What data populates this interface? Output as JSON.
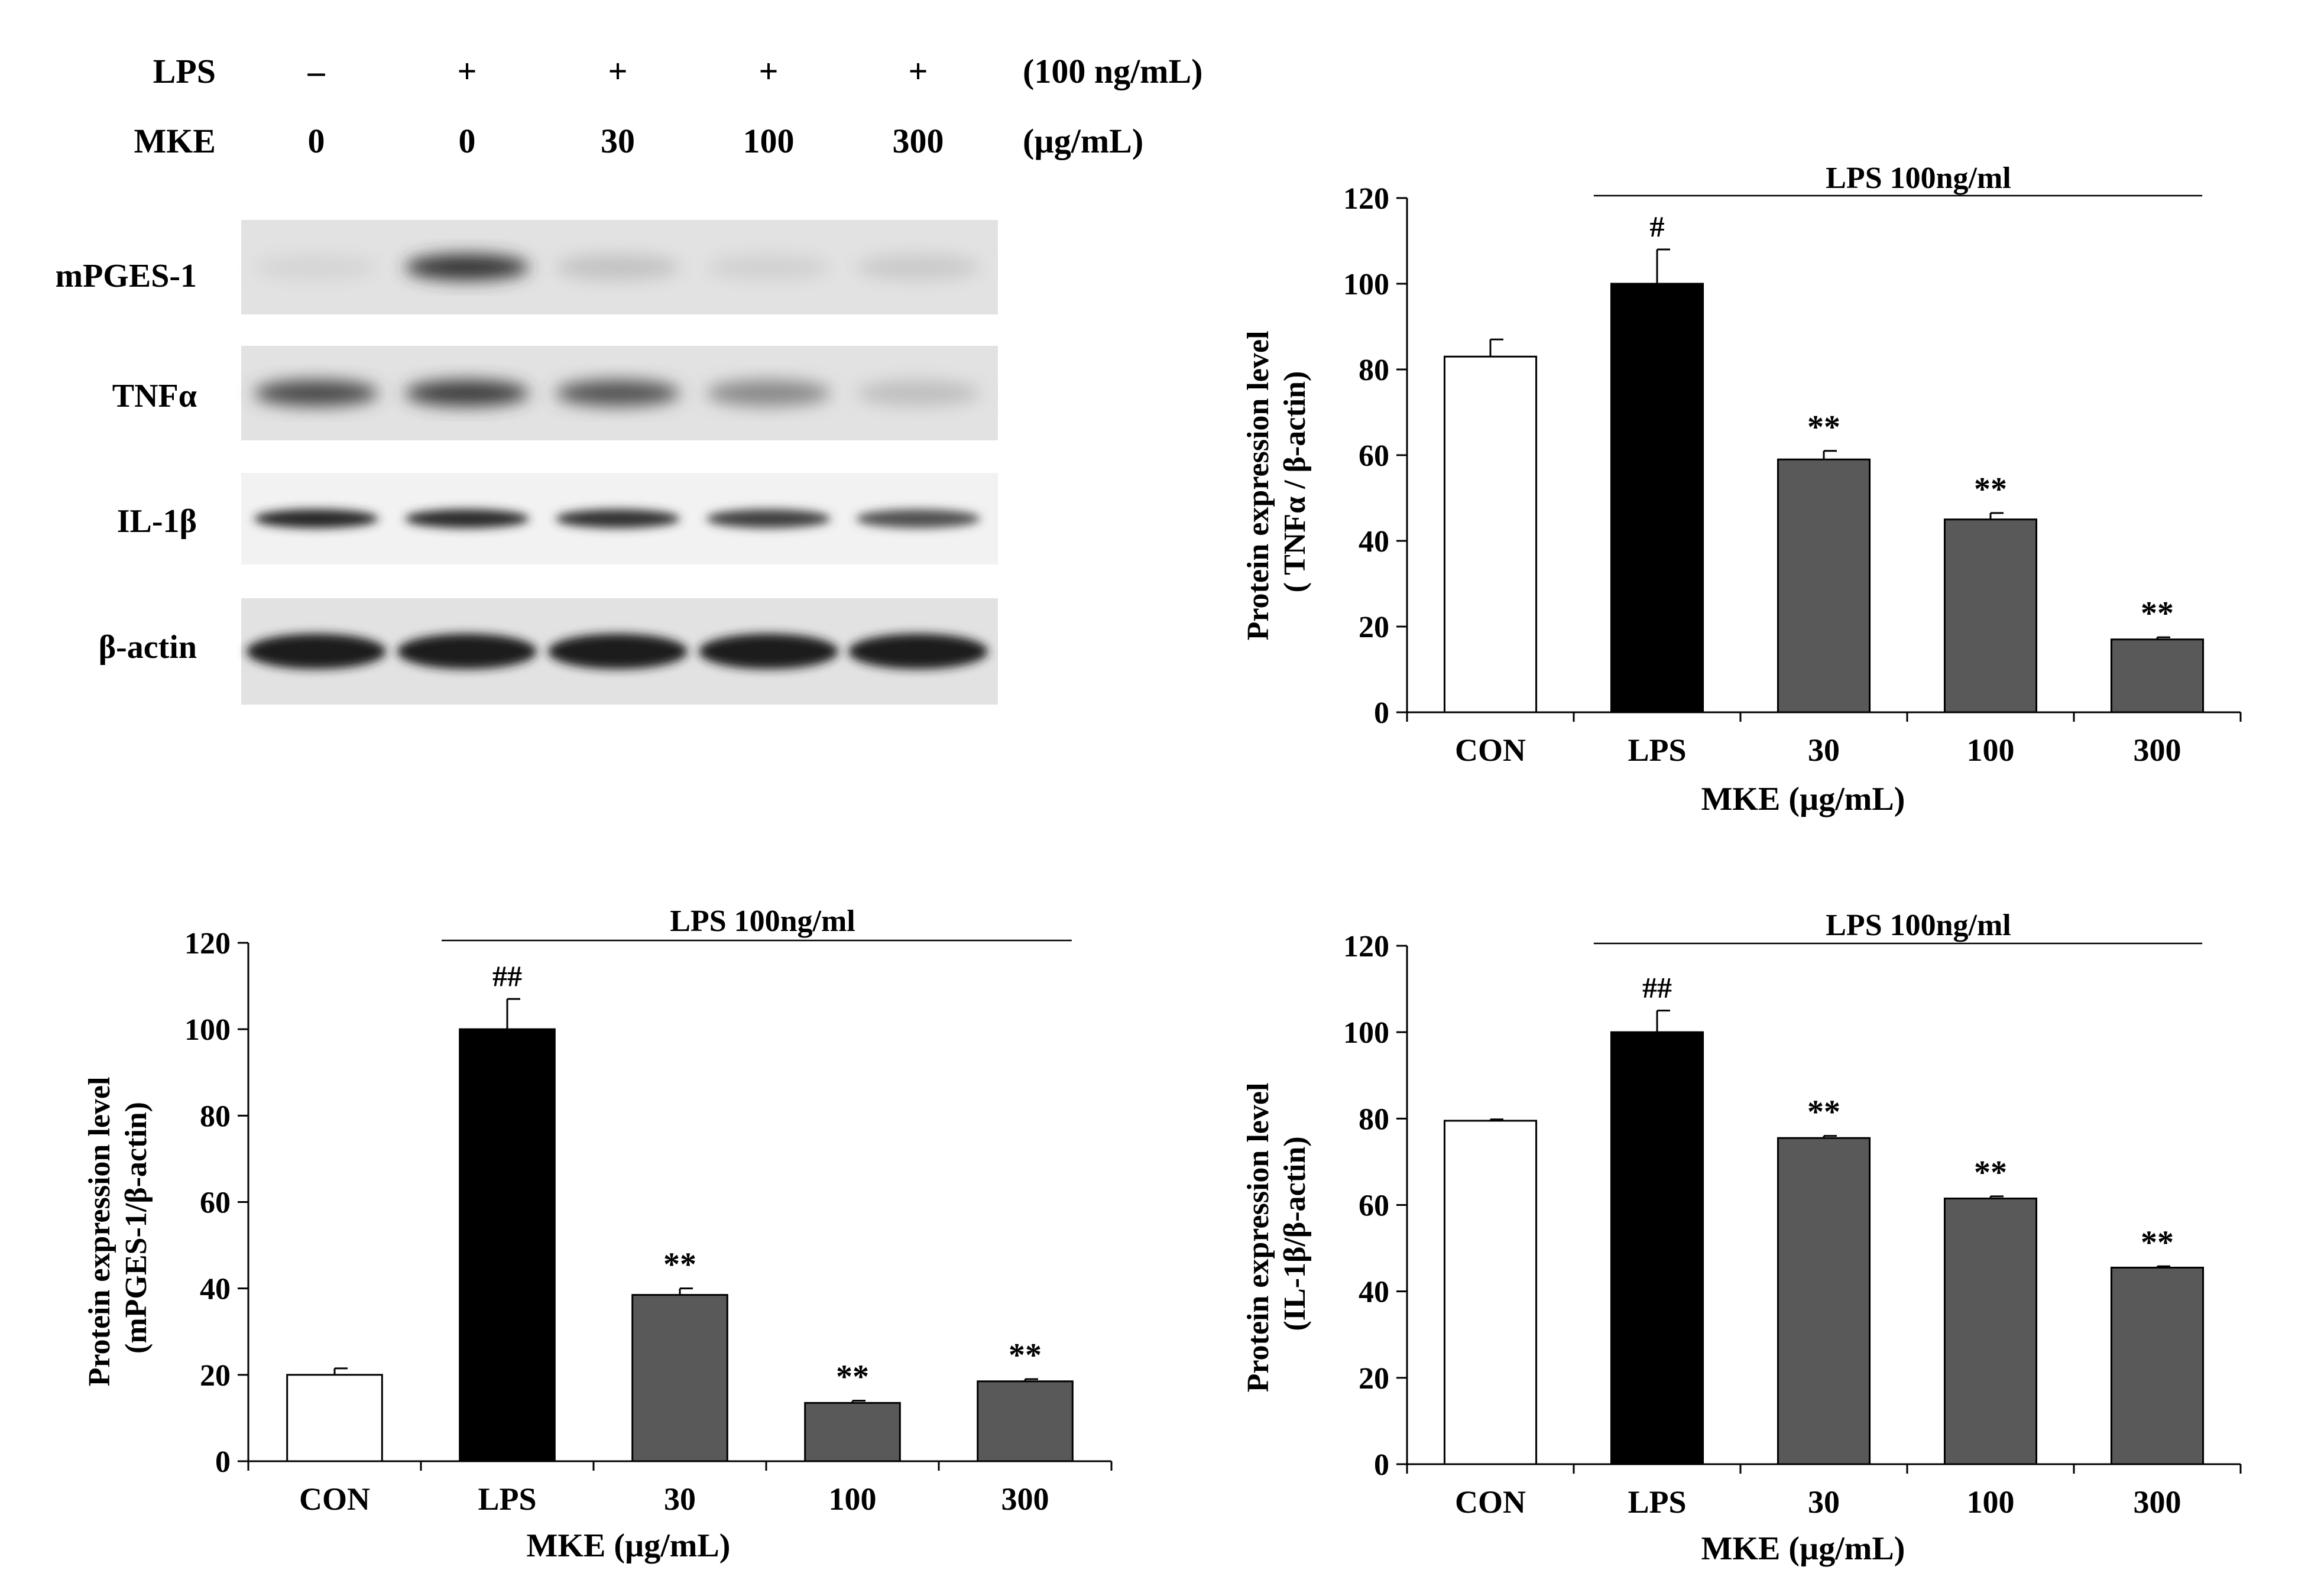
{
  "western_blot": {
    "header_rows": [
      {
        "label": "LPS",
        "values": [
          "–",
          "+",
          "+",
          "+",
          "+"
        ],
        "unit": "(100 ng/mL)"
      },
      {
        "label": "MKE",
        "values": [
          "0",
          "0",
          "30",
          "100",
          "300"
        ],
        "unit": "(µg/mL)"
      }
    ],
    "bands": [
      {
        "label": "mPGES-1",
        "intensity": [
          0.1,
          0.85,
          0.18,
          0.12,
          0.15
        ]
      },
      {
        "label": "TNFα",
        "intensity": [
          0.75,
          0.8,
          0.7,
          0.45,
          0.2
        ]
      },
      {
        "label": "IL-1β",
        "intensity": [
          0.9,
          0.88,
          0.85,
          0.78,
          0.7
        ]
      },
      {
        "label": "β-actin",
        "intensity": [
          0.95,
          0.95,
          0.95,
          0.95,
          0.95
        ]
      }
    ]
  },
  "chart_data": [
    {
      "id": "tnf",
      "type": "bar",
      "categories": [
        "CON",
        "LPS",
        "30",
        "100",
        "300"
      ],
      "values": [
        83,
        100,
        59,
        45,
        17
      ],
      "errors": [
        4,
        8,
        2,
        1.5,
        0.5
      ],
      "significance": [
        "",
        "#",
        "**",
        "**",
        "**"
      ],
      "bar_colors": [
        "#ffffff",
        "#000000",
        "#595959",
        "#595959",
        "#595959"
      ],
      "xlabel": "MKE (µg/mL)",
      "ylabel": [
        "Protein expression level",
        "( TNFα / β-actin)"
      ],
      "yticks": [
        0,
        20,
        40,
        60,
        80,
        100,
        120
      ],
      "ylim": [
        0,
        120
      ],
      "bracket_label": "LPS 100ng/ml",
      "grid": false
    },
    {
      "id": "mpges",
      "type": "bar",
      "categories": [
        "CON",
        "LPS",
        "30",
        "100",
        "300"
      ],
      "values": [
        20,
        100,
        38.5,
        13.5,
        18.5
      ],
      "errors": [
        1.5,
        7,
        1.5,
        0.5,
        0.5
      ],
      "significance": [
        "",
        "##",
        "**",
        "**",
        "**"
      ],
      "bar_colors": [
        "#ffffff",
        "#000000",
        "#595959",
        "#595959",
        "#595959"
      ],
      "xlabel": "MKE (µg/mL)",
      "ylabel": [
        "Protein expression level",
        "(mPGES-1/β-actin)"
      ],
      "yticks": [
        0,
        20,
        40,
        60,
        80,
        100,
        120
      ],
      "ylim": [
        0,
        120
      ],
      "bracket_label": "LPS 100ng/ml",
      "grid": false
    },
    {
      "id": "il1",
      "type": "bar",
      "categories": [
        "CON",
        "LPS",
        "30",
        "100",
        "300"
      ],
      "values": [
        79.5,
        100,
        75.5,
        61.5,
        45.5
      ],
      "errors": [
        0.3,
        5,
        0.5,
        0.5,
        0.3
      ],
      "significance": [
        "",
        "##",
        "**",
        "**",
        "**"
      ],
      "bar_colors": [
        "#ffffff",
        "#000000",
        "#595959",
        "#595959",
        "#595959"
      ],
      "xlabel": "MKE (µg/mL)",
      "ylabel": [
        "Protein expression level",
        "(IL-1β/β-actin)"
      ],
      "yticks": [
        0,
        20,
        40,
        60,
        80,
        100,
        120
      ],
      "ylim": [
        0,
        120
      ],
      "bracket_label": "LPS 100ng/ml",
      "grid": false
    }
  ]
}
